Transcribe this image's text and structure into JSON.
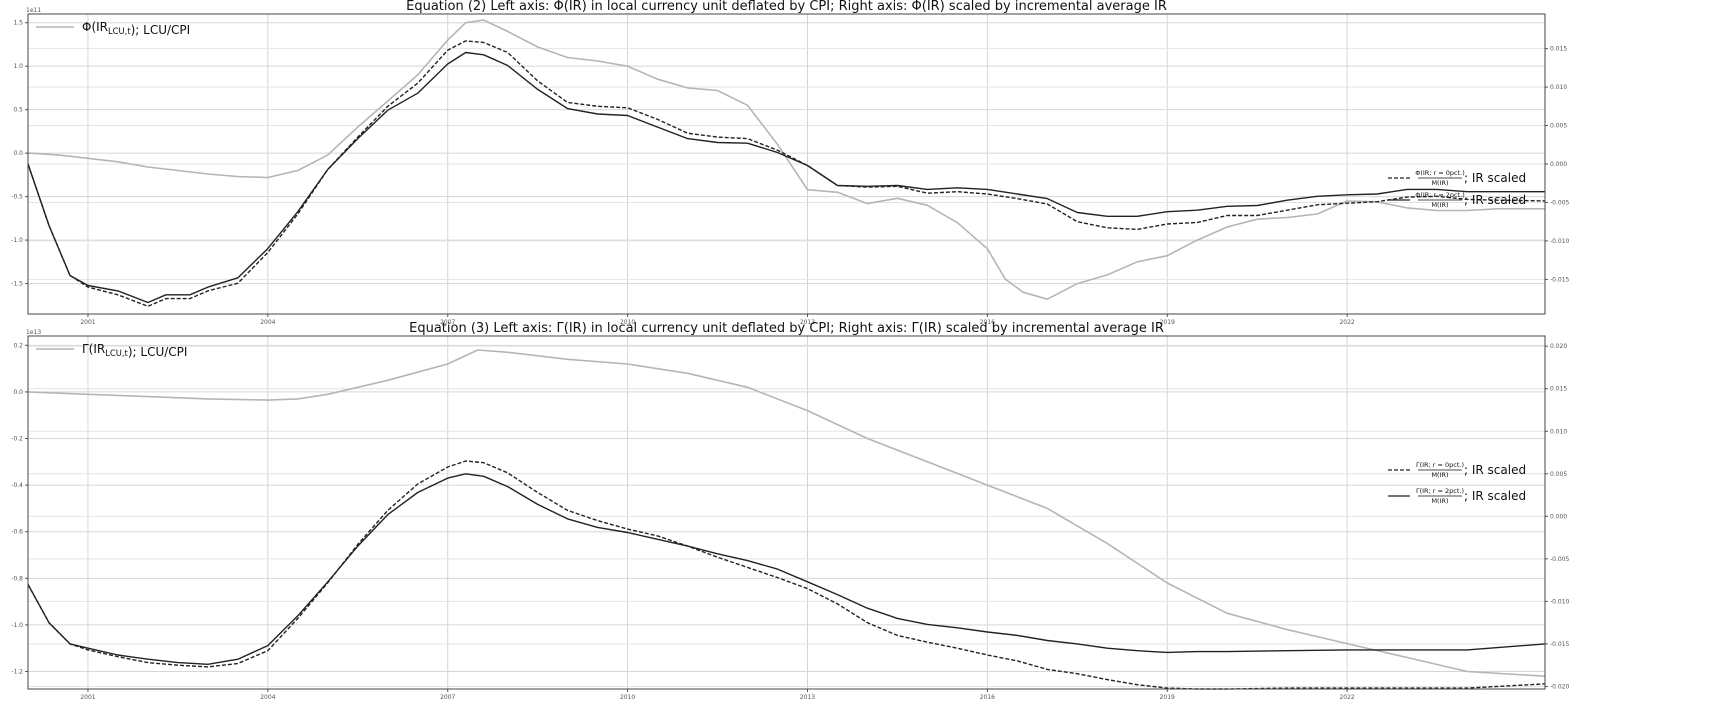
{
  "chart_data": [
    {
      "type": "line",
      "title": "Equation (2) Left axis: Φ(IR) in local currency unit deflated by CPI; Right axis: Φ(IR) scaled by incremental average IR",
      "left_offset_label": "1e11",
      "left_ylim": [
        -1.85,
        1.6
      ],
      "left_ticks": [
        "1.5",
        "1.0",
        "0.5",
        "0.0",
        "-0.5",
        "-1.0",
        "-1.5"
      ],
      "left_tick_values": [
        1.5,
        1.0,
        0.5,
        0.0,
        -0.5,
        -1.0,
        -1.5
      ],
      "right_ylim": [
        -0.0195,
        0.0195
      ],
      "right_ticks": [
        "0.015",
        "0.010",
        "0.005",
        "0.000",
        "-0.005",
        "-0.010",
        "-0.015"
      ],
      "right_tick_values": [
        0.015,
        0.01,
        0.005,
        0.0,
        -0.005,
        -0.01,
        -0.015
      ],
      "x_ticks": [
        "2001",
        "2004",
        "2007",
        "2010",
        "2013",
        "2016",
        "2019",
        "2022"
      ],
      "x_tick_values": [
        2001,
        2004,
        2007,
        2010,
        2013,
        2016,
        2019,
        2022
      ],
      "xlim": [
        2000,
        2025.3
      ],
      "grid": true,
      "series": [
        {
          "name": "Φ(IR_{LCU,t}); LCU/CPI",
          "axis": "left",
          "color": "#b5b5b5",
          "dash": "solid",
          "x": [
            2000,
            2000.5,
            2001,
            2001.5,
            2002,
            2002.5,
            2003,
            2003.5,
            2004,
            2004.5,
            2005,
            2005.5,
            2006,
            2006.5,
            2007,
            2007.3,
            2007.6,
            2008,
            2008.5,
            2009,
            2009.5,
            2010,
            2010.5,
            2011,
            2011.5,
            2012,
            2012.5,
            2013,
            2013.5,
            2014,
            2014.5,
            2015,
            2015.5,
            2016,
            2016.3,
            2016.6,
            2017,
            2017.5,
            2018,
            2018.5,
            2019,
            2019.5,
            2020,
            2020.5,
            2021,
            2021.5,
            2022,
            2022.5,
            2023,
            2023.5,
            2024,
            2024.5,
            2025.3
          ],
          "values": [
            0.0,
            -0.02,
            -0.06,
            -0.1,
            -0.16,
            -0.2,
            -0.24,
            -0.27,
            -0.28,
            -0.2,
            -0.02,
            0.3,
            0.6,
            0.9,
            1.3,
            1.5,
            1.53,
            1.4,
            1.22,
            1.1,
            1.06,
            1.0,
            0.85,
            0.75,
            0.72,
            0.55,
            0.1,
            -0.42,
            -0.45,
            -0.58,
            -0.52,
            -0.6,
            -0.8,
            -1.1,
            -1.45,
            -1.6,
            -1.68,
            -1.5,
            -1.4,
            -1.25,
            -1.18,
            -1.0,
            -0.85,
            -0.76,
            -0.74,
            -0.7,
            -0.55,
            -0.56,
            -0.63,
            -0.66,
            -0.66,
            -0.64,
            -0.64
          ]
        },
        {
          "name": "Φ(IR; r = 0pct.) / M(IR); IR scaled",
          "axis": "right",
          "color": "#222222",
          "dash": "dashed",
          "x": [
            2000,
            2000.35,
            2000.7,
            2001,
            2001.5,
            2002,
            2002.3,
            2002.7,
            2003,
            2003.5,
            2004,
            2004.5,
            2005,
            2005.5,
            2006,
            2006.5,
            2007,
            2007.3,
            2007.6,
            2008,
            2008.5,
            2009,
            2009.5,
            2010,
            2010.5,
            2011,
            2011.5,
            2012,
            2012.5,
            2013,
            2013.5,
            2014,
            2014.5,
            2015,
            2015.5,
            2016,
            2016.5,
            2017,
            2017.5,
            2018,
            2018.5,
            2019,
            2019.5,
            2020,
            2020.5,
            2021,
            2021.5,
            2022,
            2022.5,
            2023,
            2023.5,
            2024,
            2024.5,
            2025.3
          ],
          "values": [
            0.0,
            -0.008,
            -0.0145,
            -0.016,
            -0.017,
            -0.0185,
            -0.0175,
            -0.0175,
            -0.0165,
            -0.0155,
            -0.0115,
            -0.0065,
            -0.0007,
            0.0035,
            0.0075,
            0.0105,
            0.0148,
            0.016,
            0.0158,
            0.0145,
            0.0108,
            0.008,
            0.0075,
            0.0073,
            0.0058,
            0.004,
            0.0035,
            0.0033,
            0.0018,
            -0.0002,
            -0.0028,
            -0.003,
            -0.0029,
            -0.0038,
            -0.0036,
            -0.0039,
            -0.0045,
            -0.0052,
            -0.0075,
            -0.0083,
            -0.0085,
            -0.0078,
            -0.0076,
            -0.0067,
            -0.0067,
            -0.006,
            -0.0053,
            -0.0051,
            -0.0049,
            -0.0043,
            -0.0042,
            -0.0046,
            -0.0047,
            -0.0048
          ]
        },
        {
          "name": "Φ(IR; r = 2pct.) / M(IR); IR scaled",
          "axis": "right",
          "color": "#222222",
          "dash": "solid",
          "x": [
            2000,
            2000.35,
            2000.7,
            2001,
            2001.5,
            2002,
            2002.3,
            2002.7,
            2003,
            2003.5,
            2004,
            2004.5,
            2005,
            2005.5,
            2006,
            2006.5,
            2007,
            2007.3,
            2007.6,
            2008,
            2008.5,
            2009,
            2009.5,
            2010,
            2010.5,
            2011,
            2011.5,
            2012,
            2012.5,
            2013,
            2013.5,
            2014,
            2014.5,
            2015,
            2015.5,
            2016,
            2016.5,
            2017,
            2017.5,
            2018,
            2018.5,
            2019,
            2019.5,
            2020,
            2020.5,
            2021,
            2021.5,
            2022,
            2022.5,
            2023,
            2023.5,
            2024,
            2024.5,
            2025.3
          ],
          "values": [
            0.0,
            -0.008,
            -0.0145,
            -0.0158,
            -0.0165,
            -0.018,
            -0.017,
            -0.017,
            -0.016,
            -0.0148,
            -0.011,
            -0.0062,
            -0.0007,
            0.0033,
            0.007,
            0.0092,
            0.013,
            0.0145,
            0.0142,
            0.0128,
            0.0097,
            0.0072,
            0.0065,
            0.0063,
            0.0048,
            0.0033,
            0.0028,
            0.0027,
            0.0015,
            -0.0002,
            -0.0028,
            -0.0029,
            -0.0028,
            -0.0033,
            -0.0031,
            -0.0033,
            -0.0039,
            -0.0045,
            -0.0063,
            -0.0068,
            -0.0068,
            -0.0062,
            -0.006,
            -0.0055,
            -0.0054,
            -0.0047,
            -0.0042,
            -0.004,
            -0.0039,
            -0.0033,
            -0.0033,
            -0.0036,
            -0.0036,
            -0.0036
          ]
        }
      ],
      "legend": {
        "top": "Φ(IR_{LCU,t}); LCU/CPI",
        "right_items": [
          {
            "numerator": "Φ(IR; r = 0pct.)",
            "denominator": "M(IR)",
            "suffix": "; IR scaled"
          },
          {
            "numerator": "Φ(IR; r = 2pct.)",
            "denominator": "M(IR)",
            "suffix": "; IR scaled"
          }
        ]
      }
    },
    {
      "type": "line",
      "title": "Equation (3) Left axis: Γ(IR) in local currency unit deflated by CPI; Right axis: Γ(IR) scaled by incremental average IR",
      "left_offset_label": "1e13",
      "left_ylim": [
        -1.275,
        0.24
      ],
      "left_ticks": [
        "0.2",
        "0.0",
        "-0.2",
        "-0.4",
        "-0.6",
        "-0.8",
        "-1.0",
        "-1.2"
      ],
      "left_tick_values": [
        0.2,
        0.0,
        -0.2,
        -0.4,
        -0.6,
        -0.8,
        -1.0,
        -1.2
      ],
      "right_ylim": [
        -0.0203,
        0.0212
      ],
      "right_ticks": [
        "0.020",
        "0.015",
        "0.010",
        "0.005",
        "0.000",
        "-0.005",
        "-0.010",
        "-0.015",
        "-0.020"
      ],
      "right_tick_values": [
        0.02,
        0.015,
        0.01,
        0.005,
        0.0,
        -0.005,
        -0.01,
        -0.015,
        -0.02
      ],
      "x_ticks": [
        "2001",
        "2004",
        "2007",
        "2010",
        "2013",
        "2016",
        "2019",
        "2022"
      ],
      "x_tick_values": [
        2001,
        2004,
        2007,
        2010,
        2013,
        2016,
        2019,
        2022
      ],
      "xlim": [
        2000,
        2025.3
      ],
      "grid": true,
      "series": [
        {
          "name": "Γ(IR_{LCU,t}); LCU/CPI",
          "axis": "left",
          "color": "#b5b5b5",
          "dash": "solid",
          "x": [
            2000,
            2001,
            2002,
            2003,
            2004,
            2004.5,
            2005,
            2006,
            2007,
            2007.5,
            2008,
            2009,
            2010,
            2011,
            2012,
            2013,
            2014,
            2015,
            2016,
            2017,
            2018,
            2019,
            2020,
            2021,
            2022,
            2023,
            2024,
            2025.3
          ],
          "values": [
            0.0,
            -0.01,
            -0.02,
            -0.03,
            -0.035,
            -0.03,
            -0.01,
            0.05,
            0.12,
            0.18,
            0.17,
            0.14,
            0.12,
            0.08,
            0.02,
            -0.08,
            -0.2,
            -0.3,
            -0.4,
            -0.5,
            -0.65,
            -0.82,
            -0.95,
            -1.02,
            -1.08,
            -1.14,
            -1.2,
            -1.22
          ]
        },
        {
          "name": "Γ(IR; r = 0pct.) / M(IR); IR scaled",
          "axis": "right",
          "color": "#222222",
          "dash": "dashed",
          "x": [
            2000,
            2000.35,
            2000.7,
            2001,
            2001.5,
            2002,
            2002.5,
            2003,
            2003.5,
            2004,
            2004.5,
            2005,
            2005.5,
            2006,
            2006.5,
            2007,
            2007.3,
            2007.6,
            2008,
            2008.5,
            2009,
            2009.5,
            2010,
            2010.5,
            2011,
            2011.5,
            2012,
            2012.5,
            2013,
            2013.5,
            2014,
            2014.5,
            2015,
            2015.5,
            2016,
            2016.5,
            2017,
            2017.5,
            2018,
            2018.5,
            2019,
            2019.5,
            2020,
            2021,
            2022,
            2023,
            2024,
            2025.3
          ],
          "values": [
            -0.008,
            -0.0125,
            -0.015,
            -0.0157,
            -0.0165,
            -0.0172,
            -0.0175,
            -0.0177,
            -0.0173,
            -0.0158,
            -0.012,
            -0.0078,
            -0.0033,
            0.0007,
            0.0038,
            0.0058,
            0.0065,
            0.0063,
            0.0051,
            0.0028,
            0.0007,
            -0.0005,
            -0.0015,
            -0.0023,
            -0.0035,
            -0.0048,
            -0.006,
            -0.0072,
            -0.0085,
            -0.0103,
            -0.0125,
            -0.014,
            -0.0148,
            -0.0155,
            -0.0163,
            -0.017,
            -0.018,
            -0.0185,
            -0.0192,
            -0.0198,
            -0.0202,
            -0.0203,
            -0.0203,
            -0.0202,
            -0.0202,
            -0.0202,
            -0.0202,
            -0.0197
          ]
        },
        {
          "name": "Γ(IR; r = 2pct.) / M(IR); IR scaled",
          "axis": "right",
          "color": "#222222",
          "dash": "solid",
          "x": [
            2000,
            2000.35,
            2000.7,
            2001,
            2001.5,
            2002,
            2002.5,
            2003,
            2003.5,
            2004,
            2004.5,
            2005,
            2005.5,
            2006,
            2006.5,
            2007,
            2007.3,
            2007.6,
            2008,
            2008.5,
            2009,
            2009.5,
            2010,
            2010.5,
            2011,
            2011.5,
            2012,
            2012.5,
            2013,
            2013.5,
            2014,
            2014.5,
            2015,
            2015.5,
            2016,
            2016.5,
            2017,
            2017.5,
            2018,
            2018.5,
            2019,
            2019.5,
            2020,
            2021,
            2022,
            2023,
            2024,
            2025.3
          ],
          "values": [
            -0.008,
            -0.0125,
            -0.015,
            -0.0155,
            -0.0163,
            -0.0168,
            -0.0172,
            -0.0174,
            -0.0168,
            -0.0152,
            -0.0117,
            -0.0077,
            -0.0035,
            0.0002,
            0.0028,
            0.0045,
            0.005,
            0.0047,
            0.0035,
            0.0014,
            -0.0003,
            -0.0013,
            -0.0019,
            -0.0027,
            -0.0035,
            -0.0044,
            -0.0052,
            -0.0062,
            -0.0077,
            -0.0092,
            -0.0108,
            -0.012,
            -0.0127,
            -0.0131,
            -0.0136,
            -0.014,
            -0.0146,
            -0.015,
            -0.0155,
            -0.0158,
            -0.016,
            -0.0159,
            -0.0159,
            -0.0158,
            -0.0157,
            -0.0157,
            -0.0157,
            -0.015
          ]
        }
      ],
      "legend": {
        "top": "Γ(IR_{LCU,t}); LCU/CPI",
        "right_items": [
          {
            "numerator": "Γ(IR; r = 0pct.)",
            "denominator": "M(IR)",
            "suffix": "; IR scaled"
          },
          {
            "numerator": "Γ(IR; r = 2pct.)",
            "denominator": "M(IR)",
            "suffix": "; IR scaled"
          }
        ]
      }
    }
  ]
}
